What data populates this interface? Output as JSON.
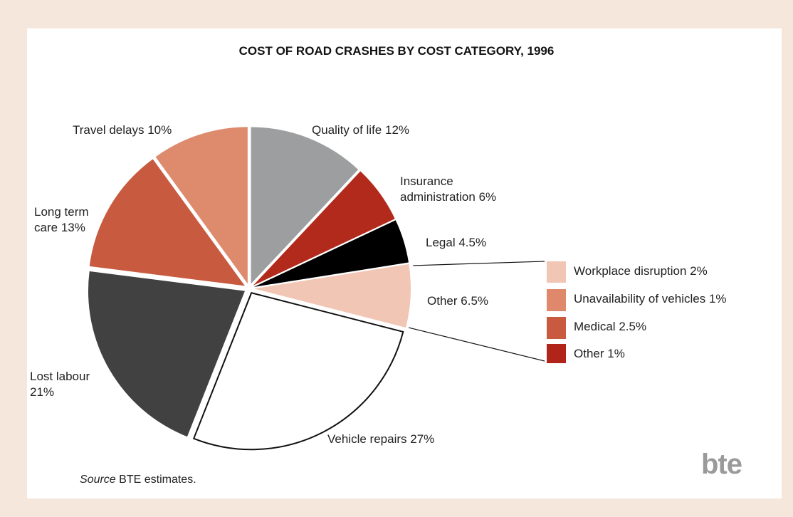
{
  "chart_data": {
    "type": "pie",
    "title": "COST OF ROAD CRASHES BY COST CATEGORY, 1996",
    "categories": [
      "Quality of life",
      "Insurance administration",
      "Legal",
      "Other",
      "Vehicle repairs",
      "Lost labour",
      "Long term care",
      "Travel delays"
    ],
    "values": [
      12,
      6,
      4.5,
      6.5,
      27,
      21,
      13,
      10
    ],
    "value_labels": [
      "12%",
      "6%",
      "4.5%",
      "6.5%",
      "27%",
      "21%",
      "13%",
      "10%"
    ],
    "colors": [
      "#9c9ea0",
      "#b22a1c",
      "#000000",
      "#f2c6b4",
      "#ffffff",
      "#414141",
      "#c85b3f",
      "#dd8a6d"
    ],
    "breakdown": {
      "categories": [
        "Workplace disruption",
        "Unavailability of vehicles",
        "Medical",
        "Other"
      ],
      "values": [
        2,
        1,
        2.5,
        1
      ],
      "value_labels": [
        "2%",
        "1%",
        "2.5%",
        "1%"
      ],
      "colors": [
        "#f2c6b4",
        "#e0886b",
        "#c85b3f",
        "#b0241a"
      ]
    },
    "source_label": "Source",
    "source": "BTE estimates.",
    "logo": "bte"
  }
}
